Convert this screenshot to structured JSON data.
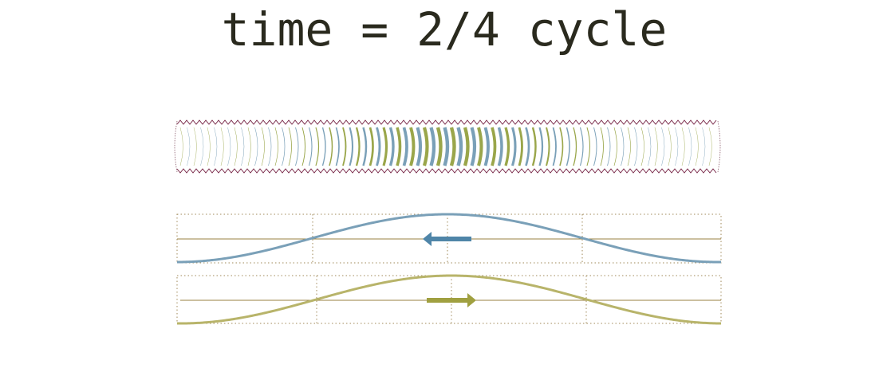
{
  "header": {
    "title": "time = 2/4 cycle"
  }
}
